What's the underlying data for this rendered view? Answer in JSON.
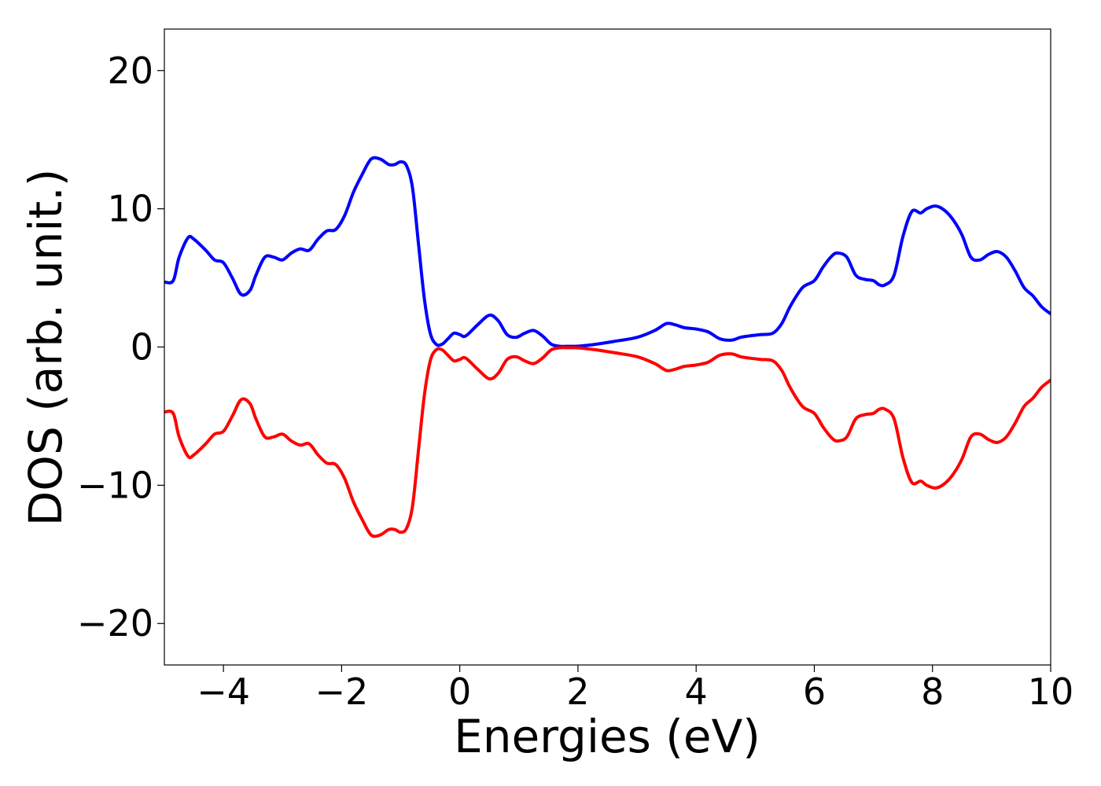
{
  "chart_data": {
    "type": "line",
    "title": "",
    "xlabel": "Energies (eV)",
    "ylabel": "DOS (arb. unit.)",
    "xlim": [
      -5,
      10
    ],
    "ylim": [
      -23,
      23
    ],
    "xticks": [
      -4,
      -2,
      0,
      2,
      4,
      6,
      8,
      10
    ],
    "yticks": [
      -20,
      -10,
      0,
      10,
      20
    ],
    "xtick_labels": [
      "−4",
      "−2",
      "0",
      "2",
      "4",
      "6",
      "8",
      "10"
    ],
    "ytick_labels": [
      "−20",
      "−10",
      "0",
      "10",
      "20"
    ],
    "grid": false,
    "legend": "none",
    "series": [
      {
        "color": "#0000ff",
        "x": [
          -5.0,
          -4.85,
          -4.75,
          -4.6,
          -4.5,
          -4.3,
          -4.15,
          -4.0,
          -3.85,
          -3.7,
          -3.55,
          -3.45,
          -3.3,
          -3.15,
          -3.0,
          -2.85,
          -2.7,
          -2.55,
          -2.4,
          -2.25,
          -2.1,
          -1.95,
          -1.8,
          -1.65,
          -1.5,
          -1.35,
          -1.2,
          -1.1,
          -1.0,
          -0.9,
          -0.8,
          -0.7,
          -0.6,
          -0.5,
          -0.4,
          -0.3,
          -0.2,
          -0.1,
          0.0,
          0.1,
          0.3,
          0.5,
          0.65,
          0.8,
          0.95,
          1.1,
          1.25,
          1.4,
          1.55,
          1.7,
          1.8,
          1.95,
          2.1,
          2.3,
          2.6,
          3.0,
          3.3,
          3.5,
          3.65,
          3.8,
          4.0,
          4.2,
          4.4,
          4.6,
          4.75,
          4.9,
          5.1,
          5.3,
          5.45,
          5.6,
          5.8,
          6.0,
          6.15,
          6.3,
          6.4,
          6.55,
          6.7,
          6.85,
          7.0,
          7.1,
          7.2,
          7.35,
          7.5,
          7.65,
          7.8,
          7.9,
          8.05,
          8.2,
          8.35,
          8.5,
          8.65,
          8.8,
          8.95,
          9.1,
          9.25,
          9.4,
          9.55,
          9.7,
          9.85,
          10.0
        ],
        "values": [
          4.7,
          4.8,
          6.5,
          7.9,
          7.8,
          7.0,
          6.3,
          6.1,
          5.0,
          3.8,
          4.1,
          5.2,
          6.5,
          6.5,
          6.3,
          6.8,
          7.1,
          7.0,
          7.8,
          8.4,
          8.5,
          9.5,
          11.2,
          12.5,
          13.6,
          13.6,
          13.2,
          13.2,
          13.4,
          13.1,
          11.5,
          7.5,
          3.5,
          1.0,
          0.2,
          0.2,
          0.6,
          1.0,
          0.9,
          0.8,
          1.6,
          2.3,
          1.9,
          0.9,
          0.7,
          1.0,
          1.2,
          0.8,
          0.2,
          0.05,
          0.05,
          0.05,
          0.1,
          0.2,
          0.4,
          0.7,
          1.2,
          1.7,
          1.6,
          1.4,
          1.3,
          1.1,
          0.6,
          0.5,
          0.7,
          0.8,
          0.9,
          1.0,
          1.7,
          3.0,
          4.3,
          4.8,
          5.8,
          6.6,
          6.8,
          6.5,
          5.2,
          4.9,
          4.8,
          4.5,
          4.5,
          5.2,
          8.0,
          9.8,
          9.7,
          10.0,
          10.2,
          9.9,
          9.2,
          8.1,
          6.5,
          6.3,
          6.7,
          6.9,
          6.5,
          5.5,
          4.3,
          3.7,
          2.9,
          2.4
        ]
      },
      {
        "color": "#ff0000",
        "x": [
          -5.0,
          -4.85,
          -4.75,
          -4.6,
          -4.5,
          -4.3,
          -4.15,
          -4.0,
          -3.85,
          -3.7,
          -3.55,
          -3.45,
          -3.3,
          -3.15,
          -3.0,
          -2.85,
          -2.7,
          -2.55,
          -2.4,
          -2.25,
          -2.1,
          -1.95,
          -1.8,
          -1.65,
          -1.5,
          -1.35,
          -1.2,
          -1.1,
          -1.0,
          -0.9,
          -0.8,
          -0.7,
          -0.6,
          -0.5,
          -0.4,
          -0.3,
          -0.2,
          -0.1,
          0.0,
          0.1,
          0.3,
          0.5,
          0.65,
          0.8,
          0.95,
          1.1,
          1.25,
          1.4,
          1.55,
          1.7,
          1.8,
          1.95,
          2.1,
          2.3,
          2.6,
          3.0,
          3.3,
          3.5,
          3.65,
          3.8,
          4.0,
          4.2,
          4.4,
          4.6,
          4.75,
          4.9,
          5.1,
          5.3,
          5.45,
          5.6,
          5.8,
          6.0,
          6.15,
          6.3,
          6.4,
          6.55,
          6.7,
          6.85,
          7.0,
          7.1,
          7.2,
          7.35,
          7.5,
          7.65,
          7.8,
          7.9,
          8.05,
          8.2,
          8.35,
          8.5,
          8.65,
          8.8,
          8.95,
          9.1,
          9.25,
          9.4,
          9.55,
          9.7,
          9.85,
          10.0
        ],
        "values": [
          -4.7,
          -4.8,
          -6.5,
          -7.9,
          -7.8,
          -7.0,
          -6.3,
          -6.1,
          -5.0,
          -3.8,
          -4.1,
          -5.2,
          -6.5,
          -6.5,
          -6.3,
          -6.8,
          -7.1,
          -7.0,
          -7.8,
          -8.4,
          -8.5,
          -9.5,
          -11.2,
          -12.5,
          -13.6,
          -13.6,
          -13.2,
          -13.2,
          -13.4,
          -13.1,
          -11.5,
          -7.5,
          -3.5,
          -1.0,
          -0.2,
          -0.2,
          -0.6,
          -1.0,
          -0.9,
          -0.8,
          -1.6,
          -2.3,
          -1.9,
          -0.9,
          -0.7,
          -1.0,
          -1.2,
          -0.8,
          -0.2,
          -0.05,
          -0.05,
          -0.05,
          -0.1,
          -0.2,
          -0.4,
          -0.7,
          -1.2,
          -1.7,
          -1.6,
          -1.4,
          -1.3,
          -1.1,
          -0.6,
          -0.5,
          -0.7,
          -0.8,
          -0.9,
          -1.0,
          -1.7,
          -3.0,
          -4.3,
          -4.8,
          -5.8,
          -6.6,
          -6.8,
          -6.5,
          -5.2,
          -4.9,
          -4.8,
          -4.5,
          -4.5,
          -5.2,
          -8.0,
          -9.8,
          -9.7,
          -10.0,
          -10.2,
          -9.9,
          -9.2,
          -8.1,
          -6.5,
          -6.3,
          -6.7,
          -6.9,
          -6.5,
          -5.5,
          -4.3,
          -3.7,
          -2.9,
          -2.4
        ]
      }
    ]
  }
}
